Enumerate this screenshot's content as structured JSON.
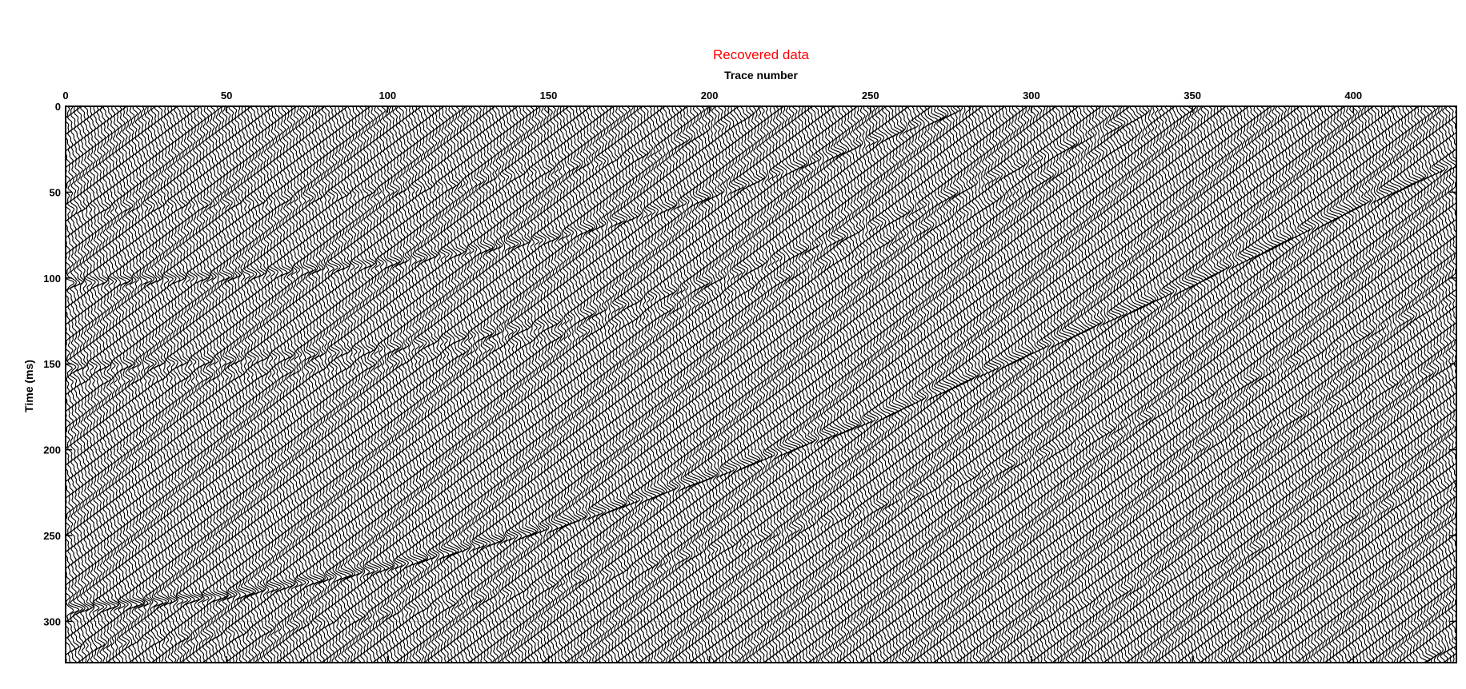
{
  "chart_data": {
    "type": "seismic-wiggle",
    "title": "Recovered data",
    "title_color": "#ff0000",
    "xlabel": "Trace number",
    "ylabel": "Time (ms)",
    "x_axis_position": "top",
    "y_axis_direction": "reversed",
    "xlim": [
      0,
      432
    ],
    "ylim": [
      0,
      324
    ],
    "xticks": [
      0,
      50,
      100,
      150,
      200,
      250,
      300,
      350,
      400
    ],
    "yticks": [
      0,
      50,
      100,
      150,
      200,
      250,
      300
    ],
    "grid": true,
    "trace_color": "#000000",
    "trace_count": 432,
    "events": [
      {
        "name": "event-1",
        "points": [
          [
            0,
            103
          ],
          [
            50,
            99
          ],
          [
            100,
            91
          ],
          [
            150,
            77
          ],
          [
            200,
            52
          ],
          [
            250,
            20
          ],
          [
            280,
            0
          ]
        ],
        "strength": 1.2
      },
      {
        "name": "event-2",
        "points": [
          [
            0,
            152
          ],
          [
            50,
            148
          ],
          [
            100,
            141
          ],
          [
            150,
            127
          ],
          [
            200,
            102
          ],
          [
            250,
            70
          ],
          [
            300,
            32
          ],
          [
            340,
            0
          ]
        ],
        "strength": 0.9
      },
      {
        "name": "event-3",
        "points": [
          [
            0,
            293
          ],
          [
            50,
            285
          ],
          [
            100,
            268
          ],
          [
            150,
            245
          ],
          [
            200,
            215
          ],
          [
            250,
            182
          ],
          [
            300,
            142
          ],
          [
            350,
            102
          ],
          [
            400,
            58
          ],
          [
            432,
            32
          ]
        ],
        "strength": 1.7
      },
      {
        "name": "event-4",
        "points": [
          [
            0,
            60
          ],
          [
            60,
            56
          ],
          [
            120,
            46
          ],
          [
            180,
            28
          ],
          [
            220,
            0
          ]
        ],
        "strength": 0.6
      },
      {
        "name": "event-5",
        "points": [
          [
            0,
            160
          ],
          [
            50,
            157
          ],
          [
            100,
            150
          ],
          [
            160,
            132
          ],
          [
            220,
            102
          ],
          [
            280,
            62
          ],
          [
            330,
            20
          ],
          [
            350,
            0
          ]
        ],
        "strength": 0.55
      },
      {
        "name": "event-6",
        "points": [
          [
            0,
            315
          ],
          [
            60,
            306
          ],
          [
            120,
            290
          ],
          [
            180,
            268
          ],
          [
            240,
            240
          ],
          [
            300,
            205
          ],
          [
            360,
            165
          ],
          [
            432,
            112
          ]
        ],
        "strength": 0.6
      },
      {
        "name": "event-7",
        "points": [
          [
            420,
            324
          ],
          [
            432,
            312
          ]
        ],
        "strength": 1.4
      },
      {
        "name": "event-8",
        "points": [
          [
            350,
            200
          ],
          [
            432,
            150
          ]
        ],
        "strength": 0.5
      },
      {
        "name": "event-9",
        "points": [
          [
            300,
            300
          ],
          [
            432,
            220
          ]
        ],
        "strength": 0.45
      }
    ]
  }
}
